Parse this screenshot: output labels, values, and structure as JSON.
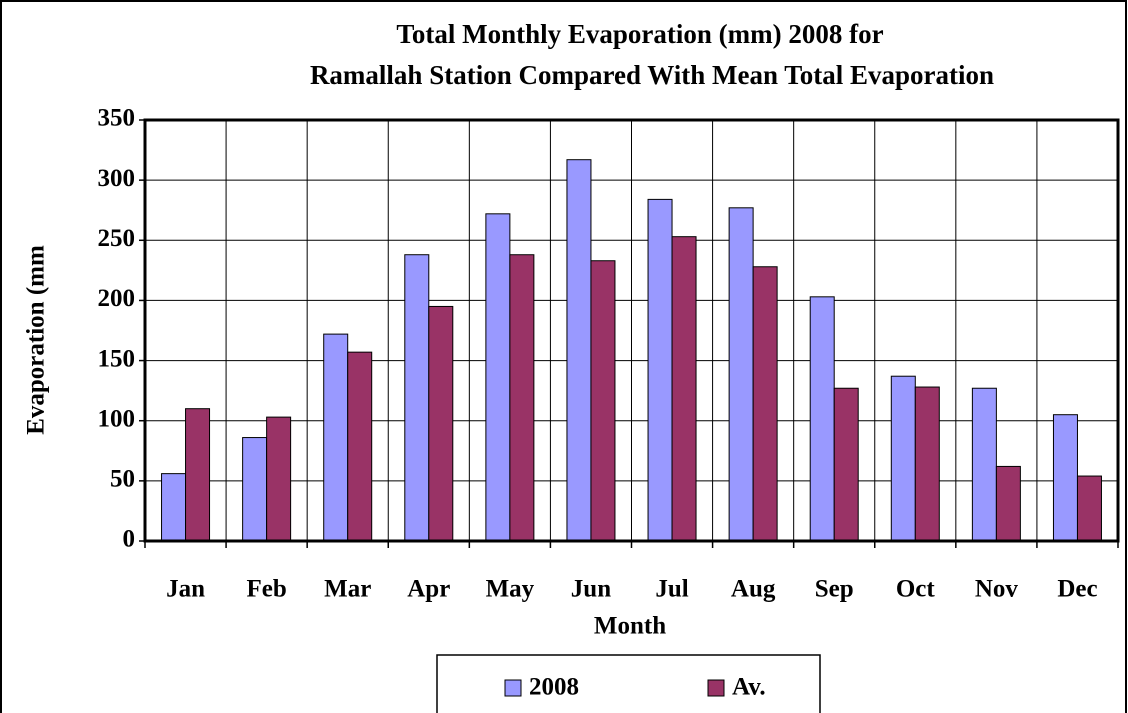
{
  "chart_data": {
    "type": "bar",
    "title": [
      "Total Monthly Evaporation (mm) 2008 for",
      "Ramallah Station Compared With Mean Total Evaporation"
    ],
    "x_label": "Month",
    "y_label": "Evaporation (mm",
    "categories": [
      "Jan",
      "Feb",
      "Mar",
      "Apr",
      "May",
      "Jun",
      "Jul",
      "Aug",
      "Sep",
      "Oct",
      "Nov",
      "Dec"
    ],
    "series": [
      {
        "name": "2008",
        "color": "#9999ff",
        "values": [
          56,
          86,
          172,
          238,
          272,
          317,
          284,
          277,
          203,
          137,
          127,
          105
        ]
      },
      {
        "name": "Av.",
        "color": "#993366",
        "values": [
          110,
          103,
          157,
          195,
          238,
          233,
          253,
          228,
          127,
          128,
          62,
          54
        ]
      }
    ],
    "ylim": [
      0,
      350
    ],
    "yticks": [
      0,
      50,
      100,
      150,
      200,
      250,
      300,
      350
    ],
    "grid": true,
    "legend": "bottom"
  }
}
